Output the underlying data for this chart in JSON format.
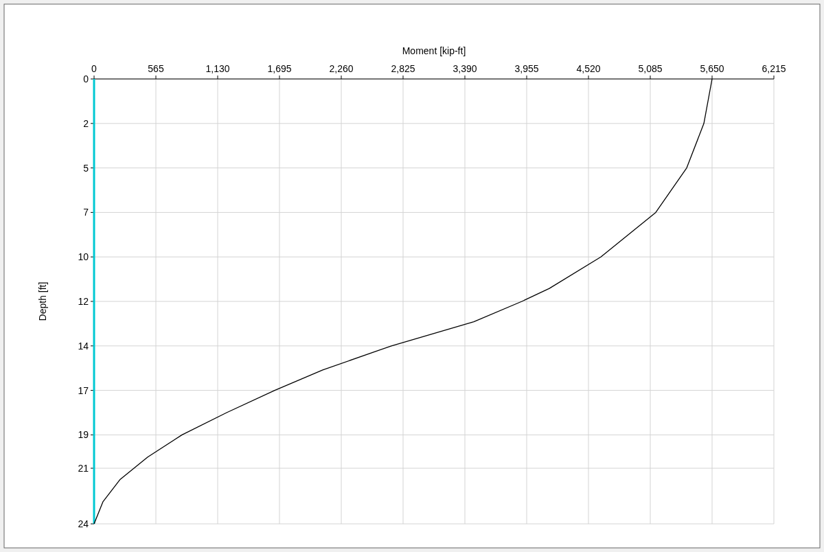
{
  "chart_data": {
    "type": "line",
    "xlabel": "Moment [kip-ft]",
    "ylabel": "Depth [ft]",
    "xlim": [
      0,
      6215
    ],
    "xticks": [
      0,
      565,
      {
        "value": 1130,
        "label": "1,130"
      },
      {
        "value": 1695,
        "label": "1,695"
      },
      {
        "value": 2260,
        "label": "2,260"
      },
      {
        "value": 2825,
        "label": "2,825"
      },
      {
        "value": 3390,
        "label": "3,390"
      },
      {
        "value": 3955,
        "label": "3,955"
      },
      {
        "value": 4520,
        "label": "4,520"
      },
      {
        "value": 5085,
        "label": "5,085"
      },
      {
        "value": 5650,
        "label": "5,650"
      },
      {
        "value": 6215,
        "label": "6,215"
      }
    ],
    "ylim": [
      24,
      0
    ],
    "yticks": [
      0,
      {
        "value": 2.4,
        "label": "2"
      },
      {
        "value": 4.8,
        "label": "5"
      },
      {
        "value": 7.2,
        "label": "7"
      },
      {
        "value": 9.6,
        "label": "10"
      },
      12,
      {
        "value": 14.4,
        "label": "14"
      },
      {
        "value": 16.8,
        "label": "17"
      },
      {
        "value": 19.2,
        "label": "19"
      },
      21,
      24
    ],
    "grid": true,
    "marker": "none",
    "line_style": "solid",
    "series": [
      {
        "color": "#00c8d2",
        "x": [
          0,
          0,
          0,
          0,
          0,
          0,
          0
        ],
        "values": [
          0,
          4,
          8,
          12,
          16,
          20,
          24
        ]
      },
      {
        "color": "#000000",
        "x": [
          5650,
          5575,
          5418,
          5135,
          4633,
          4162,
          3911,
          3472,
          2718,
          2090,
          1651,
          1212,
          804,
          490,
          239,
          82,
          0
        ],
        "values": [
          0,
          2.4,
          4.8,
          7.2,
          9.6,
          11.3,
          12,
          13.1,
          14.4,
          15.7,
          16.8,
          18,
          19.2,
          20.4,
          21.6,
          22.8,
          24
        ]
      }
    ]
  }
}
